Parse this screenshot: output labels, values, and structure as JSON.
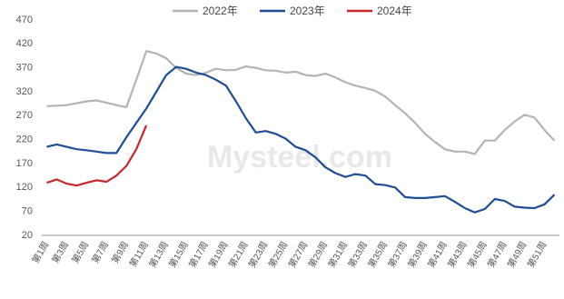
{
  "chart_data": {
    "type": "line",
    "watermark": "Mysteel.com",
    "categories": [
      "第1周",
      null,
      "第3周",
      null,
      "第5周",
      null,
      "第7周",
      null,
      "第9周",
      null,
      "第11周",
      null,
      "第13周",
      null,
      "第15周",
      null,
      "第17周",
      null,
      "第19周",
      null,
      "第21周",
      null,
      "第23周",
      null,
      "第25周",
      null,
      "第27周",
      null,
      "第29周",
      null,
      "第31周",
      null,
      "第33周",
      null,
      "第35周",
      null,
      "第37周",
      null,
      "第39周",
      null,
      "第41周",
      null,
      "第43周",
      null,
      "第45周",
      null,
      "第47周",
      null,
      "第49周",
      null,
      "第51周",
      null
    ],
    "series": [
      {
        "name": "2022年",
        "color": "#b4b4b4",
        "values": [
          290,
          291,
          292,
          296,
          300,
          302,
          297,
          292,
          288,
          345,
          405,
          400,
          390,
          370,
          358,
          355,
          360,
          368,
          365,
          366,
          373,
          370,
          365,
          364,
          360,
          362,
          355,
          353,
          358,
          350,
          340,
          333,
          328,
          322,
          310,
          292,
          275,
          255,
          232,
          215,
          200,
          195,
          195,
          190,
          218,
          218,
          240,
          258,
          272,
          266,
          240,
          218
        ]
      },
      {
        "name": "2023年",
        "color": "#1f4e96",
        "values": [
          205,
          210,
          205,
          200,
          198,
          195,
          192,
          192,
          225,
          255,
          285,
          320,
          355,
          372,
          368,
          360,
          355,
          345,
          333,
          300,
          265,
          235,
          238,
          232,
          222,
          205,
          198,
          183,
          162,
          150,
          142,
          148,
          145,
          127,
          125,
          120,
          100,
          98,
          98,
          100,
          102,
          90,
          77,
          68,
          75,
          96,
          92,
          80,
          78,
          77,
          85,
          105
        ]
      },
      {
        "name": "2024年",
        "color": "#c8282d",
        "values": [
          130,
          137,
          128,
          124,
          130,
          135,
          132,
          145,
          165,
          200,
          250,
          null,
          null,
          null,
          null,
          null,
          null,
          null,
          null,
          null,
          null,
          null,
          null,
          null,
          null,
          null,
          null,
          null,
          null,
          null,
          null,
          null,
          null,
          null,
          null,
          null,
          null,
          null,
          null,
          null,
          null,
          null,
          null,
          null,
          null,
          null,
          null,
          null,
          null,
          null,
          null,
          null
        ]
      }
    ],
    "ylim": [
      20,
      470
    ],
    "yticks": [
      20,
      70,
      120,
      170,
      220,
      270,
      320,
      370,
      420,
      470
    ],
    "legend": "top"
  }
}
